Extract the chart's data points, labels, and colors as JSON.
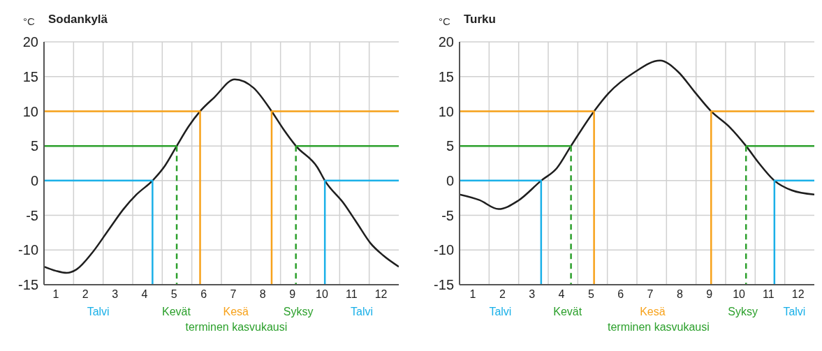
{
  "chart_data": [
    {
      "type": "line",
      "title": "Sodankylä",
      "ylabel": "°C",
      "xlim": [
        0.6,
        12.6
      ],
      "xticks": [
        1,
        2,
        3,
        4,
        5,
        6,
        7,
        8,
        9,
        10,
        11,
        12,
        {
          "value": 1.6,
          "label": null
        },
        {
          "value": 2.6,
          "label": null
        },
        {
          "value": 3.6,
          "label": null
        },
        {
          "value": 4.6,
          "label": null
        },
        {
          "value": 5.6,
          "label": null
        },
        {
          "value": 6.6,
          "label": null
        },
        {
          "value": 7.6,
          "label": null
        },
        {
          "value": 8.6,
          "label": null
        },
        {
          "value": 9.6,
          "label": null
        },
        {
          "value": 10.6,
          "label": null
        },
        {
          "value": 11.6,
          "label": null
        }
      ],
      "ylim": [
        -15,
        20
      ],
      "yticks": [
        -15,
        -10,
        -5,
        0,
        5,
        10,
        15,
        20
      ],
      "grid": true,
      "annotations": [
        "Talvi",
        "Kevät",
        "Kesä",
        "Syksy",
        "Talvi",
        "terminen kasvukausi"
      ],
      "series": [
        {
          "color": "#1e1e1e",
          "x": [
            0.6,
            1.0,
            1.37,
            1.7,
            2.23,
            2.8,
            3.29,
            3.73,
            4.27,
            4.7,
            5.09,
            5.49,
            5.88,
            6.36,
            7.05,
            7.68,
            8.3,
            8.7,
            9.12,
            9.85,
            10.1,
            10.76,
            11.2,
            11.64,
            12.08,
            12.6
          ],
          "values": [
            -12.4,
            -13.0,
            -13.3,
            -12.8,
            -10.4,
            -7.0,
            -4.1,
            -2.0,
            0,
            2.2,
            5,
            7.8,
            10,
            12.0,
            14.6,
            13.4,
            10,
            7.4,
            5,
            1.9,
            0,
            -3.4,
            -6.2,
            -9.0,
            -10.8,
            -12.4
          ]
        },
        {
          "color": "#1ab0e8",
          "x": [
            0.6,
            4.27,
            4.27
          ],
          "values": [
            0,
            0,
            -15
          ]
        },
        {
          "color": "#1ab0e8",
          "x": [
            10.1,
            10.1,
            12.6
          ],
          "values": [
            -15,
            0,
            0
          ]
        },
        {
          "color": "#2ca02c",
          "x": [
            0.6,
            5.09
          ],
          "values": [
            5,
            5
          ]
        },
        {
          "color": "#2ca02c",
          "x": [
            5.09,
            5.09
          ],
          "values": [
            5,
            -15
          ],
          "line_style": "dashed"
        },
        {
          "color": "#2ca02c",
          "x": [
            9.12,
            12.6
          ],
          "values": [
            5,
            5
          ]
        },
        {
          "color": "#2ca02c",
          "x": [
            9.12,
            9.12
          ],
          "values": [
            5,
            -15
          ],
          "line_style": "dashed"
        },
        {
          "color": "#f7a21b",
          "x": [
            0.6,
            5.88,
            5.88
          ],
          "values": [
            10,
            10,
            -15
          ]
        },
        {
          "color": "#f7a21b",
          "x": [
            8.3,
            8.3,
            12.6
          ],
          "values": [
            -15,
            10,
            10
          ]
        }
      ]
    },
    {
      "type": "line",
      "title": "Turku",
      "ylabel": "°C",
      "xlim": [
        0.55,
        12.55
      ],
      "xticks": [
        1,
        2,
        3,
        4,
        5,
        6,
        7,
        8,
        9,
        10,
        11,
        12,
        {
          "value": 1.55,
          "label": null
        },
        {
          "value": 2.55,
          "label": null
        },
        {
          "value": 3.55,
          "label": null
        },
        {
          "value": 4.55,
          "label": null
        },
        {
          "value": 5.55,
          "label": null
        },
        {
          "value": 6.55,
          "label": null
        },
        {
          "value": 7.55,
          "label": null
        },
        {
          "value": 8.55,
          "label": null
        },
        {
          "value": 9.55,
          "label": null
        },
        {
          "value": 10.55,
          "label": null
        },
        {
          "value": 11.55,
          "label": null
        }
      ],
      "ylim": [
        -15,
        20
      ],
      "yticks": [
        -15,
        -10,
        -5,
        0,
        5,
        10,
        15,
        20
      ],
      "grid": true,
      "annotations": [
        "Talvi",
        "Kevät",
        "Kesä",
        "Syksy",
        "Talvi",
        "terminen kasvukausi"
      ],
      "series": [
        {
          "color": "#1e1e1e",
          "x": [
            0.55,
            1.22,
            1.87,
            2.53,
            3.31,
            3.84,
            4.32,
            5.1,
            5.59,
            6.46,
            7.33,
            7.94,
            8.5,
            9.06,
            9.69,
            10.24,
            10.7,
            11.2,
            11.79,
            12.55
          ],
          "values": [
            -2.0,
            -2.8,
            -4.1,
            -2.9,
            0,
            1.8,
            5,
            10,
            12.6,
            15.6,
            17.3,
            15.7,
            12.8,
            10,
            7.7,
            5,
            2.4,
            0,
            -1.4,
            -2.0
          ]
        },
        {
          "color": "#1ab0e8",
          "x": [
            0.55,
            3.31,
            3.31
          ],
          "values": [
            0,
            0,
            -15
          ]
        },
        {
          "color": "#1ab0e8",
          "x": [
            11.2,
            11.2,
            12.55
          ],
          "values": [
            -15,
            0,
            0
          ]
        },
        {
          "color": "#2ca02c",
          "x": [
            0.55,
            4.32
          ],
          "values": [
            5,
            5
          ]
        },
        {
          "color": "#2ca02c",
          "x": [
            4.32,
            4.32
          ],
          "values": [
            5,
            -15
          ],
          "line_style": "dashed"
        },
        {
          "color": "#2ca02c",
          "x": [
            10.24,
            12.55
          ],
          "values": [
            5,
            5
          ]
        },
        {
          "color": "#2ca02c",
          "x": [
            10.24,
            10.24
          ],
          "values": [
            5,
            -15
          ],
          "line_style": "dashed"
        },
        {
          "color": "#f7a21b",
          "x": [
            0.55,
            5.1,
            5.1
          ],
          "values": [
            10,
            10,
            -15
          ]
        },
        {
          "color": "#f7a21b",
          "x": [
            9.06,
            9.06,
            12.55
          ],
          "values": [
            -15,
            10,
            10
          ]
        }
      ]
    }
  ]
}
